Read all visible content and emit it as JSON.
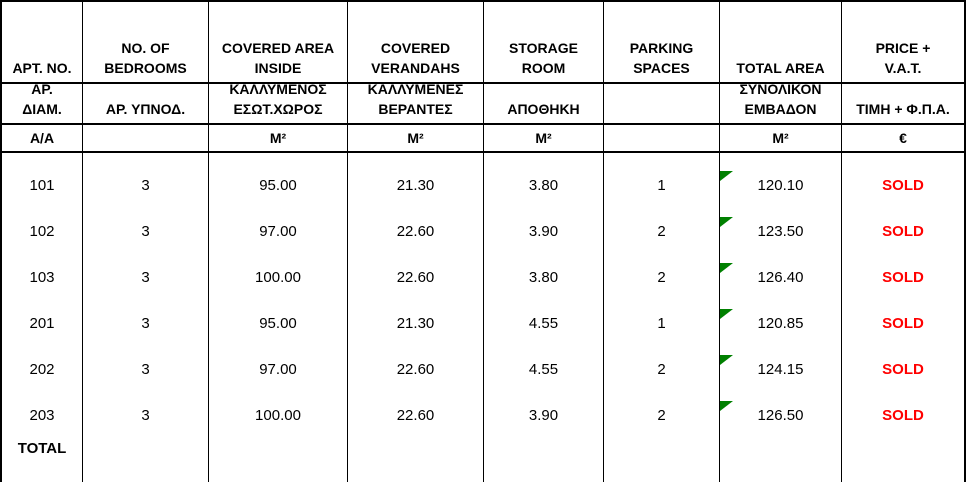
{
  "colors": {
    "sold_red": "#ff0000",
    "triangle_green": "#008000",
    "border_black": "#000000",
    "bg_white": "#ffffff"
  },
  "table": {
    "columns": [
      {
        "en": "APT. NO.",
        "gr": "ΑΡ.\nΔΙΑΜ.",
        "unit": "Α/Α"
      },
      {
        "en": "NO. OF\nBEDROOMS",
        "gr": "ΑΡ. ΥΠΝΟΔ.",
        "unit": ""
      },
      {
        "en": "COVERED AREA\nINSIDE",
        "gr": "ΚΑΛΛΥΜΕΝΟΣ\nΕΣΩΤ.ΧΩΡΟΣ",
        "unit": "M²"
      },
      {
        "en": "COVERED\nVERANDAHS",
        "gr": "ΚΑΛΛΥΜΕΝΕΣ\nΒΕΡΑΝΤΕΣ",
        "unit": "M²"
      },
      {
        "en": "STORAGE\nROOM",
        "gr": "ΑΠΟΘΗΚΗ",
        "unit": "M²"
      },
      {
        "en": "PARKING\nSPACES",
        "gr": "",
        "unit": ""
      },
      {
        "en": "TOTAL AREA",
        "gr": "ΣΥΝΟΛΙΚΟΝ\nΕΜΒΑΔΟΝ",
        "unit": "M²"
      },
      {
        "en": "PRICE +\nV.A.T.",
        "gr": "ΤΙΜΗ + Φ.Π.Α.",
        "unit": "€"
      }
    ],
    "rows": [
      {
        "apt": "101",
        "bedrooms": "3",
        "covered_area_inside": "95.00",
        "covered_verandahs": "21.30",
        "storage_room": "3.80",
        "parking_spaces": "1",
        "total_area": "120.10",
        "price_status": "SOLD"
      },
      {
        "apt": "102",
        "bedrooms": "3",
        "covered_area_inside": "97.00",
        "covered_verandahs": "22.60",
        "storage_room": "3.90",
        "parking_spaces": "2",
        "total_area": "123.50",
        "price_status": "SOLD"
      },
      {
        "apt": "103",
        "bedrooms": "3",
        "covered_area_inside": "100.00",
        "covered_verandahs": "22.60",
        "storage_room": "3.80",
        "parking_spaces": "2",
        "total_area": "126.40",
        "price_status": "SOLD"
      },
      {
        "apt": "201",
        "bedrooms": "3",
        "covered_area_inside": "95.00",
        "covered_verandahs": "21.30",
        "storage_room": "4.55",
        "parking_spaces": "1",
        "total_area": "120.85",
        "price_status": "SOLD"
      },
      {
        "apt": "202",
        "bedrooms": "3",
        "covered_area_inside": "97.00",
        "covered_verandahs": "22.60",
        "storage_room": "4.55",
        "parking_spaces": "2",
        "total_area": "124.15",
        "price_status": "SOLD"
      },
      {
        "apt": "203",
        "bedrooms": "3",
        "covered_area_inside": "100.00",
        "covered_verandahs": "22.60",
        "storage_room": "3.90",
        "parking_spaces": "2",
        "total_area": "126.50",
        "price_status": "SOLD"
      }
    ],
    "total_row": {
      "label": "TOTAL"
    }
  }
}
